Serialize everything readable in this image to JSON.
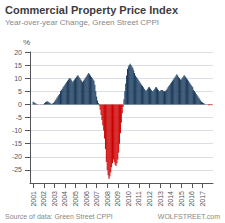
{
  "chart_data": {
    "type": "bar",
    "title": "Commercial Property Price Index",
    "subtitle": "Year-over-year Change, Green Street CPPI",
    "ylabel": "%",
    "annotations": [
      "Source of data: Green Street CPPI",
      "WOLFSTREET.com"
    ],
    "xlim": [
      2000.7,
      2018.0
    ],
    "xticks": [
      2001,
      2002,
      2003,
      2004,
      2005,
      2006,
      2007,
      2008,
      2009,
      2010,
      2011,
      2012,
      2013,
      2014,
      2015,
      2016,
      2017
    ],
    "ylim": [
      -30,
      20
    ],
    "yticks": [
      -25,
      -20,
      -15,
      -10,
      -5,
      0,
      5,
      10,
      15,
      20
    ],
    "grid": true,
    "x": [
      2001,
      2001.0833333333333,
      2001.1666666666667,
      2001.25,
      2001.3333333333333,
      2001.4166666666667,
      2001.5,
      2001.5833333333333,
      2001.6666666666667,
      2001.75,
      2001.8333333333333,
      2001.9166666666667,
      2002,
      2002.0833333333333,
      2002.1666666666667,
      2002.25,
      2002.3333333333333,
      2002.4166666666667,
      2002.5,
      2002.5833333333333,
      2002.6666666666667,
      2002.75,
      2002.8333333333333,
      2002.9166666666667,
      2003,
      2003.0833333333333,
      2003.1666666666667,
      2003.25,
      2003.3333333333333,
      2003.4166666666667,
      2003.5,
      2003.5833333333333,
      2003.6666666666667,
      2003.75,
      2003.8333333333333,
      2003.9166666666667,
      2004,
      2004.0833333333333,
      2004.1666666666667,
      2004.25,
      2004.3333333333333,
      2004.4166666666667,
      2004.5,
      2004.5833333333333,
      2004.6666666666667,
      2004.75,
      2004.8333333333333,
      2004.9166666666667,
      2005,
      2005.0833333333333,
      2005.1666666666667,
      2005.25,
      2005.3333333333333,
      2005.4166666666667,
      2005.5,
      2005.5833333333333,
      2005.6666666666667,
      2005.75,
      2005.8333333333333,
      2005.9166666666667,
      2006,
      2006.0833333333333,
      2006.1666666666667,
      2006.25,
      2006.3333333333333,
      2006.4166666666667,
      2006.5,
      2006.5833333333333,
      2006.6666666666667,
      2006.75,
      2006.8333333333333,
      2006.9166666666667,
      2007,
      2007.0833333333333,
      2007.1666666666667,
      2007.25,
      2007.3333333333333,
      2007.4166666666667,
      2007.5,
      2007.5833333333333,
      2007.6666666666667,
      2007.75,
      2007.8333333333333,
      2007.9166666666667,
      2008,
      2008.0833333333333,
      2008.1666666666667,
      2008.25,
      2008.3333333333333,
      2008.4166666666667,
      2008.5,
      2008.5833333333333,
      2008.6666666666667,
      2008.75,
      2008.8333333333333,
      2008.9166666666667,
      2009,
      2009.0833333333333,
      2009.1666666666667,
      2009.25,
      2009.3333333333333,
      2009.4166666666667,
      2009.5,
      2009.5833333333333,
      2009.6666666666667,
      2009.75,
      2009.8333333333333,
      2009.9166666666667,
      2010,
      2010.0833333333333,
      2010.1666666666667,
      2010.25,
      2010.3333333333333,
      2010.4166666666667,
      2010.5,
      2010.5833333333333,
      2010.6666666666667,
      2010.75,
      2010.8333333333333,
      2010.9166666666667,
      2011,
      2011.0833333333333,
      2011.1666666666667,
      2011.25,
      2011.3333333333333,
      2011.4166666666667,
      2011.5,
      2011.5833333333333,
      2011.6666666666667,
      2011.75,
      2011.8333333333333,
      2011.9166666666667,
      2012,
      2012.0833333333333,
      2012.1666666666667,
      2012.25,
      2012.3333333333333,
      2012.4166666666667,
      2012.5,
      2012.5833333333333,
      2012.6666666666667,
      2012.75,
      2012.8333333333333,
      2012.9166666666667,
      2013,
      2013.0833333333333,
      2013.1666666666667,
      2013.25,
      2013.3333333333333,
      2013.4166666666667,
      2013.5,
      2013.5833333333333,
      2013.6666666666667,
      2013.75,
      2013.8333333333333,
      2013.9166666666667,
      2014,
      2014.0833333333333,
      2014.1666666666667,
      2014.25,
      2014.3333333333333,
      2014.4166666666667,
      2014.5,
      2014.5833333333333,
      2014.6666666666667,
      2014.75,
      2014.8333333333333,
      2014.9166666666667,
      2015,
      2015.0833333333333,
      2015.1666666666667,
      2015.25,
      2015.3333333333333,
      2015.4166666666667,
      2015.5,
      2015.5833333333333,
      2015.6666666666667,
      2015.75,
      2015.8333333333333,
      2015.9166666666667,
      2016,
      2016.0833333333333,
      2016.1666666666667,
      2016.25,
      2016.3333333333333,
      2016.4166666666667,
      2016.5,
      2016.5833333333333,
      2016.6666666666667,
      2016.75,
      2016.8333333333333,
      2016.9166666666667,
      2017,
      2017.0833333333333,
      2017.1666666666667,
      2017.25,
      2017.3333333333333,
      2017.4166666666667,
      2017.5,
      2017.5833333333333,
      2017.6666666666667,
      2017.75,
      2017.8333333333333,
      2017.9166666666667
    ],
    "values": [
      1.0,
      0.8,
      0.5,
      0.3,
      0.2,
      0.1,
      0.1,
      0.0,
      -0.1,
      -0.1,
      0.0,
      0.1,
      0.2,
      0.5,
      0.8,
      1.0,
      1.2,
      1.0,
      0.8,
      0.5,
      0.3,
      0.2,
      0.3,
      0.5,
      1.0,
      1.5,
      2.0,
      2.5,
      3.0,
      3.5,
      4.0,
      5.0,
      5.5,
      6.0,
      6.5,
      7.0,
      7.5,
      8.0,
      8.5,
      9.0,
      9.5,
      10.0,
      10.0,
      9.5,
      9.0,
      8.5,
      9.0,
      9.5,
      10.0,
      10.5,
      11.0,
      11.0,
      10.5,
      10.0,
      9.5,
      9.0,
      8.5,
      9.0,
      9.5,
      10.0,
      10.5,
      11.0,
      11.5,
      12.0,
      11.5,
      11.0,
      10.5,
      10.0,
      9.5,
      9.0,
      7.5,
      5.0,
      3.0,
      1.5,
      0.5,
      -0.5,
      -2.0,
      -4.0,
      -6.0,
      -8.0,
      -10.0,
      -13.0,
      -17.0,
      -22.0,
      -25.0,
      -27.0,
      -28.5,
      -27.5,
      -26.0,
      -24.0,
      -22.5,
      -21.0,
      -22.0,
      -23.0,
      -23.5,
      -22.5,
      -21.0,
      -18.5,
      -15.0,
      -11.0,
      -7.0,
      -3.5,
      -1.0,
      2.0,
      5.0,
      8.0,
      11.0,
      13.5,
      14.5,
      15.0,
      15.5,
      15.0,
      14.5,
      14.0,
      13.0,
      12.0,
      11.0,
      10.5,
      10.0,
      9.5,
      9.0,
      8.5,
      8.0,
      7.5,
      7.0,
      6.5,
      6.0,
      5.5,
      5.0,
      5.5,
      6.0,
      6.5,
      6.5,
      6.0,
      5.5,
      5.0,
      5.0,
      5.5,
      6.0,
      6.5,
      6.5,
      6.0,
      5.5,
      5.0,
      5.0,
      5.5,
      5.5,
      5.5,
      5.0,
      5.0,
      5.0,
      5.5,
      6.0,
      6.5,
      7.0,
      7.5,
      8.0,
      8.5,
      9.0,
      9.5,
      10.0,
      10.5,
      11.0,
      11.5,
      11.0,
      10.5,
      10.0,
      9.5,
      9.5,
      10.0,
      10.5,
      11.0,
      11.0,
      10.5,
      10.0,
      9.5,
      9.0,
      8.5,
      8.0,
      7.5,
      7.0,
      6.5,
      5.5,
      5.0,
      4.5,
      4.0,
      3.5,
      3.0,
      2.5,
      2.0,
      1.5,
      1.0,
      0.8,
      0.5,
      0.3,
      0.2,
      0.1,
      0.0,
      -0.2,
      -0.3,
      -0.3,
      -0.2,
      -0.2,
      -0.3
    ],
    "colors": [
      "#1a3a5c",
      "#1a3a5c",
      "#1a3a5c",
      "#1a3a5c",
      "#1a3a5c",
      "#1a3a5c",
      "#1a3a5c",
      "#1a3a5c",
      "#cc0000",
      "#cc0000",
      "#1a3a5c",
      "#1a3a5c",
      "#1a3a5c",
      "#1a3a5c",
      "#1a3a5c",
      "#1a3a5c",
      "#1a3a5c",
      "#1a3a5c",
      "#1a3a5c",
      "#1a3a5c",
      "#1a3a5c",
      "#1a3a5c",
      "#1a3a5c",
      "#1a3a5c",
      "#1a3a5c",
      "#1a3a5c",
      "#1a3a5c",
      "#1a3a5c",
      "#1a3a5c",
      "#1a3a5c",
      "#1a3a5c",
      "#1a3a5c",
      "#1a3a5c",
      "#1a3a5c",
      "#1a3a5c",
      "#1a3a5c",
      "#1a3a5c",
      "#1a3a5c",
      "#1a3a5c",
      "#1a3a5c",
      "#1a3a5c",
      "#1a3a5c",
      "#1a3a5c",
      "#1a3a5c",
      "#1a3a5c",
      "#1a3a5c",
      "#1a3a5c",
      "#1a3a5c",
      "#1a3a5c",
      "#1a3a5c",
      "#1a3a5c",
      "#1a3a5c",
      "#1a3a5c",
      "#1a3a5c",
      "#1a3a5c",
      "#1a3a5c",
      "#1a3a5c",
      "#1a3a5c",
      "#1a3a5c",
      "#1a3a5c",
      "#1a3a5c",
      "#1a3a5c",
      "#1a3a5c",
      "#1a3a5c",
      "#1a3a5c",
      "#1a3a5c",
      "#1a3a5c",
      "#1a3a5c",
      "#1a3a5c",
      "#1a3a5c",
      "#1a3a5c",
      "#1a3a5c",
      "#1a3a5c",
      "#1a3a5c",
      "#1a3a5c",
      "#cc0000",
      "#cc0000",
      "#cc0000",
      "#cc0000",
      "#cc0000",
      "#cc0000",
      "#cc0000",
      "#cc0000",
      "#cc0000",
      "#cc0000",
      "#cc0000",
      "#cc0000",
      "#cc0000",
      "#cc0000",
      "#cc0000",
      "#cc0000",
      "#cc0000",
      "#cc0000",
      "#cc0000",
      "#cc0000",
      "#cc0000",
      "#cc0000",
      "#cc0000",
      "#cc0000",
      "#cc0000",
      "#cc0000",
      "#cc0000",
      "#cc0000",
      "#1a3a5c",
      "#1a3a5c",
      "#1a3a5c",
      "#1a3a5c",
      "#1a3a5c",
      "#1a3a5c",
      "#1a3a5c",
      "#1a3a5c",
      "#1a3a5c",
      "#1a3a5c",
      "#1a3a5c",
      "#1a3a5c",
      "#1a3a5c",
      "#1a3a5c",
      "#1a3a5c",
      "#1a3a5c",
      "#1a3a5c",
      "#1a3a5c",
      "#1a3a5c",
      "#1a3a5c",
      "#1a3a5c",
      "#1a3a5c",
      "#1a3a5c",
      "#1a3a5c",
      "#1a3a5c",
      "#1a3a5c",
      "#1a3a5c",
      "#1a3a5c",
      "#1a3a5c",
      "#1a3a5c",
      "#1a3a5c",
      "#1a3a5c",
      "#1a3a5c",
      "#1a3a5c",
      "#1a3a5c",
      "#1a3a5c",
      "#1a3a5c",
      "#1a3a5c",
      "#1a3a5c",
      "#1a3a5c",
      "#1a3a5c",
      "#1a3a5c",
      "#1a3a5c",
      "#1a3a5c",
      "#1a3a5c",
      "#1a3a5c",
      "#1a3a5c",
      "#1a3a5c",
      "#1a3a5c",
      "#1a3a5c",
      "#1a3a5c",
      "#1a3a5c",
      "#1a3a5c",
      "#1a3a5c",
      "#1a3a5c",
      "#1a3a5c",
      "#1a3a5c",
      "#1a3a5c",
      "#1a3a5c",
      "#1a3a5c",
      "#1a3a5c",
      "#1a3a5c",
      "#1a3a5c",
      "#1a3a5c",
      "#1a3a5c",
      "#1a3a5c",
      "#1a3a5c",
      "#1a3a5c",
      "#1a3a5c",
      "#1a3a5c",
      "#1a3a5c",
      "#1a3a5c",
      "#1a3a5c",
      "#1a3a5c",
      "#1a3a5c",
      "#1a3a5c",
      "#1a3a5c",
      "#1a3a5c",
      "#1a3a5c",
      "#1a3a5c",
      "#1a3a5c",
      "#1a3a5c",
      "#1a3a5c",
      "#1a3a5c",
      "#1a3a5c",
      "#1a3a5c",
      "#1a3a5c",
      "#1a3a5c",
      "#1a3a5c",
      "#1a3a5c",
      "#1a3a5c",
      "#1a3a5c",
      "#1a3a5c",
      "#1a3a5c",
      "#1a3a5c",
      "#cc0000",
      "#cc0000",
      "#cc0000",
      "#cc0000",
      "#cc0000",
      "#cc0000"
    ]
  }
}
